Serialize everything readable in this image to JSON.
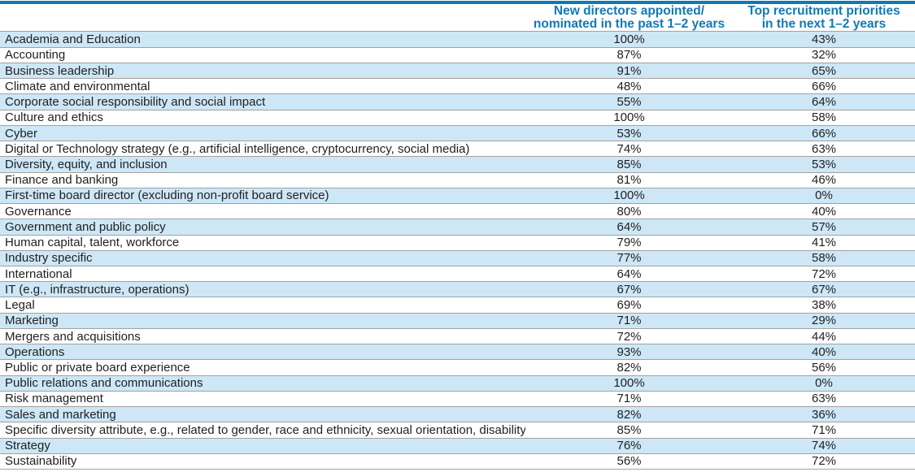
{
  "accent_color": "#0e79b4",
  "header_text_color": "#1279b5",
  "row_stripe_color": "#cde7f7",
  "chart_data": {
    "type": "table",
    "title": "",
    "columns": [
      "",
      "New directors appointed/nominated in the past 1–2 years",
      "Top recruitment priorities in the next 1–2 years"
    ],
    "header": {
      "col1_line1": "New directors appointed/",
      "col1_line2": "nominated in the past 1–2 years",
      "col2_line1": "Top recruitment priorities",
      "col2_line2": "in the next 1–2 years"
    },
    "rows": [
      {
        "label": "Academia and Education",
        "appointed": "100%",
        "priority": "43%"
      },
      {
        "label": "Accounting",
        "appointed": "87%",
        "priority": "32%"
      },
      {
        "label": "Business leadership",
        "appointed": "91%",
        "priority": "65%"
      },
      {
        "label": "Climate and environmental",
        "appointed": "48%",
        "priority": "66%"
      },
      {
        "label": "Corporate social responsibility and social impact",
        "appointed": "55%",
        "priority": "64%"
      },
      {
        "label": "Culture and ethics",
        "appointed": "100%",
        "priority": "58%"
      },
      {
        "label": "Cyber",
        "appointed": "53%",
        "priority": "66%"
      },
      {
        "label": "Digital or Technology strategy (e.g., artificial intelligence, cryptocurrency, social media)",
        "appointed": "74%",
        "priority": "63%"
      },
      {
        "label": "Diversity, equity, and inclusion",
        "appointed": "85%",
        "priority": "53%"
      },
      {
        "label": "Finance and banking",
        "appointed": "81%",
        "priority": "46%"
      },
      {
        "label": "First-time board director (excluding non-profit board service)",
        "appointed": "100%",
        "priority": "0%"
      },
      {
        "label": "Governance",
        "appointed": "80%",
        "priority": "40%"
      },
      {
        "label": "Government and public policy",
        "appointed": "64%",
        "priority": "57%"
      },
      {
        "label": "Human capital, talent, workforce",
        "appointed": "79%",
        "priority": "41%"
      },
      {
        "label": "Industry specific",
        "appointed": "77%",
        "priority": "58%"
      },
      {
        "label": "International",
        "appointed": "64%",
        "priority": "72%"
      },
      {
        "label": "IT (e.g., infrastructure, operations)",
        "appointed": "67%",
        "priority": "67%"
      },
      {
        "label": "Legal",
        "appointed": "69%",
        "priority": "38%"
      },
      {
        "label": "Marketing",
        "appointed": "71%",
        "priority": "29%"
      },
      {
        "label": "Mergers and acquisitions",
        "appointed": "72%",
        "priority": "44%"
      },
      {
        "label": "Operations",
        "appointed": "93%",
        "priority": "40%"
      },
      {
        "label": "Public or private board experience",
        "appointed": "82%",
        "priority": "56%"
      },
      {
        "label": "Public relations and communications",
        "appointed": "100%",
        "priority": "0%"
      },
      {
        "label": "Risk management",
        "appointed": "71%",
        "priority": "63%"
      },
      {
        "label": "Sales and marketing",
        "appointed": "82%",
        "priority": "36%"
      },
      {
        "label": "Specific diversity attribute, e.g., related to gender, race and ethnicity, sexual orientation, disability",
        "appointed": "85%",
        "priority": "71%"
      },
      {
        "label": "Strategy",
        "appointed": "76%",
        "priority": "74%"
      },
      {
        "label": "Sustainability",
        "appointed": "56%",
        "priority": "72%"
      }
    ]
  }
}
